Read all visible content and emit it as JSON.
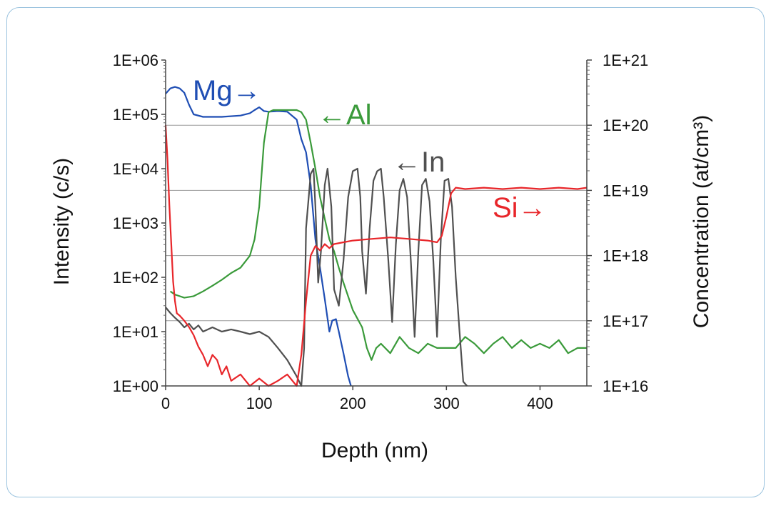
{
  "chart_data": {
    "type": "line",
    "xlabel": "Depth (nm)",
    "ylabel": "Intensity (c/s)",
    "y2label": "Concentration (at/cm³)",
    "xlim": [
      0,
      450
    ],
    "ylim_log10": [
      0,
      6
    ],
    "y2lim_log10": [
      16,
      21
    ],
    "y_scale": "log",
    "y2_scale": "log",
    "grid": "horizontal",
    "x_ticks": [
      "0",
      "100",
      "200",
      "300",
      "400"
    ],
    "y_ticks": [
      "1E+00",
      "1E+01",
      "1E+02",
      "1E+03",
      "1E+04",
      "1E+05",
      "1E+06"
    ],
    "y2_ticks": [
      "1E+16",
      "1E+17",
      "1E+18",
      "1E+19",
      "1E+20",
      "1E+21"
    ],
    "colors": {
      "Mg": "#1f4eb4",
      "Al": "#3a9a3a",
      "In": "#505050",
      "Si": "#e8262a"
    },
    "annotations": {
      "Mg": "Mg→",
      "Al": "←Al",
      "In": "←In",
      "Si": "Si→"
    },
    "series": [
      {
        "name": "Mg",
        "axis": "left",
        "x": [
          0,
          5,
          10,
          15,
          20,
          25,
          30,
          40,
          60,
          80,
          90,
          95,
          100,
          105,
          110,
          120,
          130,
          140,
          145,
          150,
          155,
          160,
          165,
          170,
          175,
          178,
          182,
          185,
          190,
          195,
          198
        ],
        "y": [
          240000.0,
          300000.0,
          320000.0,
          300000.0,
          250000.0,
          150000.0,
          100000.0,
          90000.0,
          90000.0,
          95000.0,
          105000.0,
          120000.0,
          135000.0,
          115000.0,
          112000.0,
          115000.0,
          112000.0,
          80000.0,
          35000.0,
          20000.0,
          5000.0,
          500.0,
          150.0,
          40.0,
          10.0,
          16.0,
          17.0,
          10.0,
          4.0,
          1.5,
          1.0
        ]
      },
      {
        "name": "Al",
        "axis": "left",
        "x": [
          5,
          10,
          20,
          30,
          40,
          50,
          60,
          70,
          80,
          90,
          95,
          100,
          105,
          110,
          115,
          120,
          130,
          140,
          145,
          150,
          155,
          160,
          165,
          170,
          175,
          180,
          185,
          190,
          200,
          210,
          215,
          220,
          225,
          230,
          240,
          250,
          260,
          270,
          280,
          290,
          300,
          310,
          320,
          330,
          340,
          350,
          360,
          370,
          380,
          390,
          400,
          410,
          420,
          430,
          440,
          450
        ],
        "y": [
          55,
          48,
          42,
          45,
          55,
          70,
          90,
          120,
          150,
          250,
          500,
          2000,
          30000.0,
          110000.0,
          120000.0,
          120000.0,
          120000.0,
          120000.0,
          110000.0,
          80000.0,
          30000.0,
          10000.0,
          3000.0,
          1200.0,
          500,
          300,
          150,
          80,
          25,
          12,
          5,
          3,
          5,
          6,
          4,
          8,
          5,
          4,
          6,
          5,
          5,
          5,
          8,
          6,
          4,
          6,
          8,
          5,
          7,
          5,
          6,
          5,
          7,
          4,
          5,
          5
        ]
      },
      {
        "name": "In",
        "axis": "left",
        "x": [
          0,
          5,
          10,
          15,
          20,
          25,
          30,
          35,
          40,
          50,
          60,
          70,
          80,
          90,
          100,
          110,
          120,
          130,
          140,
          145,
          148,
          150,
          155,
          158,
          160,
          163,
          166,
          170,
          173,
          177,
          180,
          185,
          190,
          195,
          200,
          205,
          208,
          210,
          214,
          218,
          222,
          226,
          230,
          233,
          238,
          242,
          246,
          250,
          254,
          258,
          262,
          266,
          270,
          274,
          278,
          282,
          286,
          290,
          294,
          298,
          302,
          306,
          310,
          314,
          318,
          322
        ],
        "y": [
          28,
          22,
          18,
          15,
          12,
          14,
          11,
          13,
          10,
          12,
          10,
          11,
          10,
          9,
          10,
          8,
          5,
          3,
          1.5,
          1,
          5,
          800,
          8000,
          10000.0,
          2000,
          80,
          300,
          5000,
          10000.0,
          2000,
          60,
          30,
          200,
          3000,
          9000,
          10000.0,
          3000,
          300,
          50,
          800,
          6000,
          9000,
          10000.0,
          3000,
          200,
          15,
          400,
          4000,
          6500,
          3000,
          200,
          8,
          300,
          5000,
          6500,
          2500,
          200,
          8,
          500,
          6000,
          6500,
          2000,
          100,
          10,
          1.2,
          1
        ]
      },
      {
        "name": "Si",
        "axis": "right",
        "x": [
          0,
          2,
          4,
          6,
          8,
          10,
          12,
          15,
          20,
          25,
          30,
          35,
          40,
          45,
          50,
          55,
          60,
          65,
          70,
          80,
          90,
          100,
          110,
          120,
          130,
          140,
          145,
          150,
          155,
          160,
          165,
          170,
          175,
          180,
          190,
          200,
          220,
          240,
          260,
          280,
          290,
          295,
          300,
          305,
          310,
          320,
          340,
          360,
          380,
          400,
          420,
          440,
          450
        ],
        "y": [
          1e+20,
          3e+19,
          6e+18,
          1.5e+18,
          4e+17,
          2e+17,
          1.3e+17,
          1.2e+17,
          1e+17,
          8e+16,
          6e+16,
          4e+16,
          3e+16,
          2e+16,
          3e+16,
          2.5e+16,
          1.5e+16,
          2e+16,
          1.2e+16,
          1.5e+16,
          1e+16,
          1.3e+16,
          1e+16,
          1.2e+16,
          1.5e+16,
          1e+16,
          3e+16,
          2e+17,
          1e+18,
          1.4e+18,
          1.2e+18,
          1.5e+18,
          1.3e+18,
          1.5e+18,
          1.6e+18,
          1.7e+18,
          1.8e+18,
          1.9e+18,
          1.8e+18,
          1.7e+18,
          1.6e+18,
          2e+18,
          4e+18,
          9e+18,
          1.1e+19,
          1.05e+19,
          1.1e+19,
          1.05e+19,
          1.1e+19,
          1.05e+19,
          1.1e+19,
          1.05e+19,
          1.1e+19
        ]
      }
    ]
  }
}
